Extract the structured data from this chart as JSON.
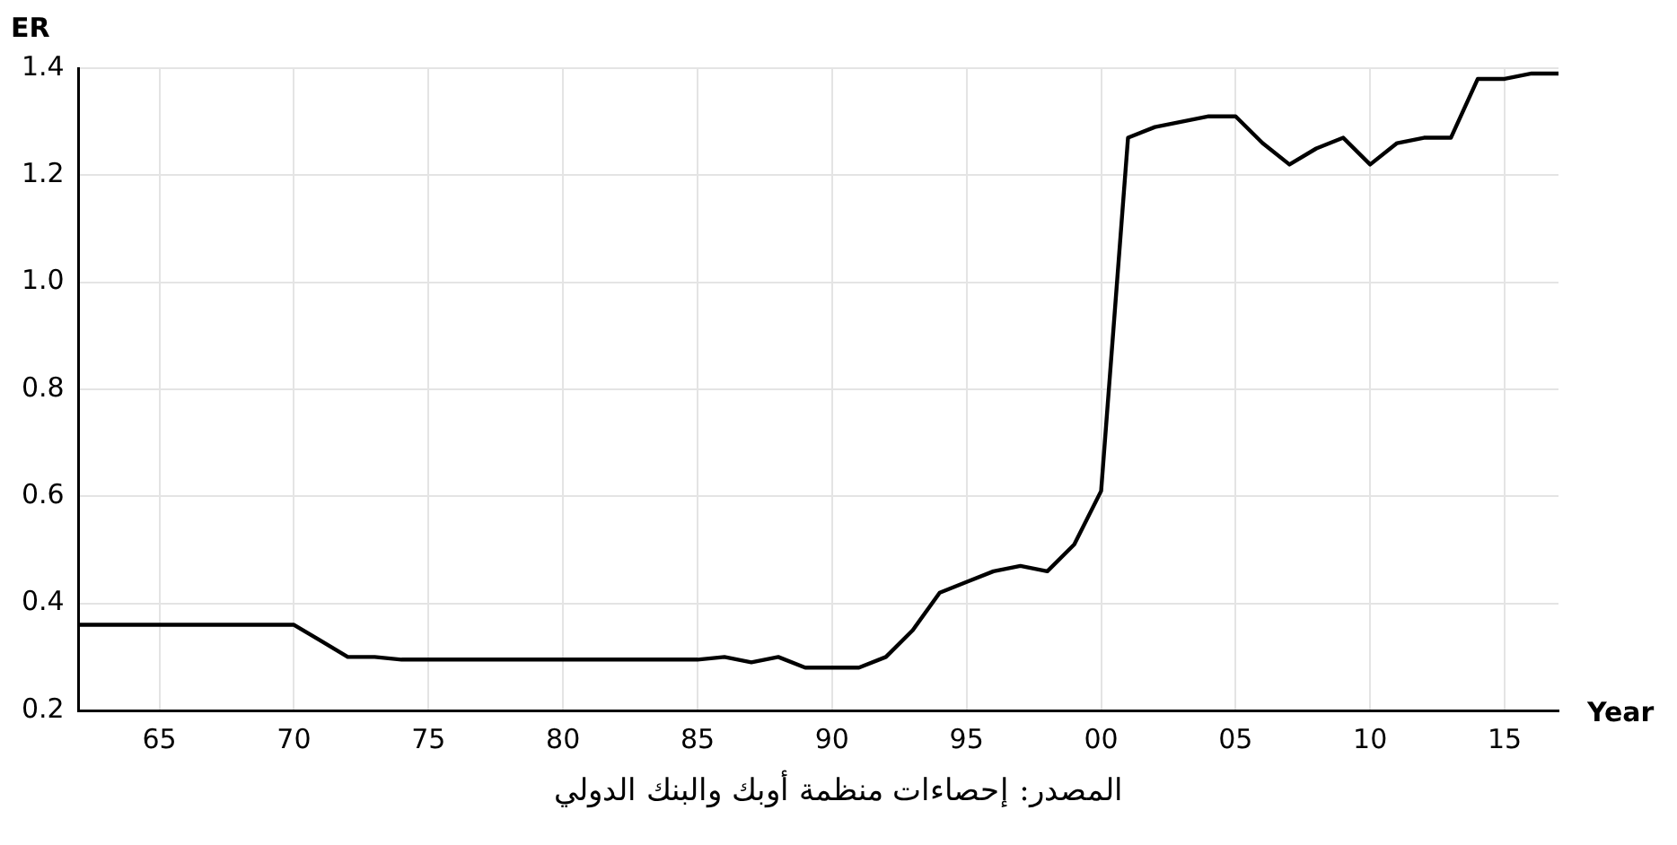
{
  "chart_data": {
    "type": "line",
    "xlabel": "Year",
    "ylabel": "ER",
    "x": [
      1962,
      1963,
      1964,
      1965,
      1966,
      1967,
      1968,
      1969,
      1970,
      1971,
      1972,
      1973,
      1974,
      1975,
      1976,
      1977,
      1978,
      1979,
      1980,
      1981,
      1982,
      1983,
      1984,
      1985,
      1986,
      1987,
      1988,
      1989,
      1990,
      1991,
      1992,
      1993,
      1994,
      1995,
      1996,
      1997,
      1998,
      1999,
      2000,
      2001,
      2002,
      2003,
      2004,
      2005,
      2006,
      2007,
      2008,
      2009,
      2010,
      2011,
      2012,
      2013,
      2014,
      2015,
      2016,
      2017
    ],
    "series": [
      {
        "color": "#000000",
        "values": [
          0.36,
          0.36,
          0.36,
          0.36,
          0.36,
          0.36,
          0.36,
          0.36,
          0.36,
          0.33,
          0.3,
          0.3,
          0.295,
          0.295,
          0.295,
          0.295,
          0.295,
          0.295,
          0.295,
          0.295,
          0.295,
          0.295,
          0.295,
          0.295,
          0.3,
          0.29,
          0.3,
          0.28,
          0.28,
          0.28,
          0.3,
          0.35,
          0.42,
          0.44,
          0.46,
          0.47,
          0.46,
          0.51,
          0.61,
          1.27,
          1.29,
          1.3,
          1.31,
          1.31,
          1.26,
          1.22,
          1.25,
          1.27,
          1.22,
          1.26,
          1.27,
          1.27,
          1.38,
          1.38,
          1.39,
          1.39
        ]
      }
    ],
    "xlim": [
      1962,
      2017
    ],
    "xticks": [
      {
        "value": 1965,
        "label": "65"
      },
      {
        "value": 1970,
        "label": "70"
      },
      {
        "value": 1975,
        "label": "75"
      },
      {
        "value": 1980,
        "label": "80"
      },
      {
        "value": 1985,
        "label": "85"
      },
      {
        "value": 1990,
        "label": "90"
      },
      {
        "value": 1995,
        "label": "95"
      },
      {
        "value": 2000,
        "label": "00"
      },
      {
        "value": 2005,
        "label": "05"
      },
      {
        "value": 2010,
        "label": "10"
      },
      {
        "value": 2015,
        "label": "15"
      }
    ],
    "ylim": [
      0.2,
      1.4
    ],
    "yticks": [
      {
        "value": 0.2,
        "label": "0.2"
      },
      {
        "value": 0.4,
        "label": "0.4"
      },
      {
        "value": 0.6,
        "label": "0.6"
      },
      {
        "value": 0.8,
        "label": "0.8"
      },
      {
        "value": 1.0,
        "label": "1.0"
      },
      {
        "value": 1.2,
        "label": "1.2"
      },
      {
        "value": 1.4,
        "label": "1.4"
      }
    ],
    "grid": true,
    "legend": false,
    "marker": "none",
    "line_style": "solid",
    "annotations": [
      "المصدر: إحصاءات منظمة أوبك والبنك الدولي"
    ]
  }
}
